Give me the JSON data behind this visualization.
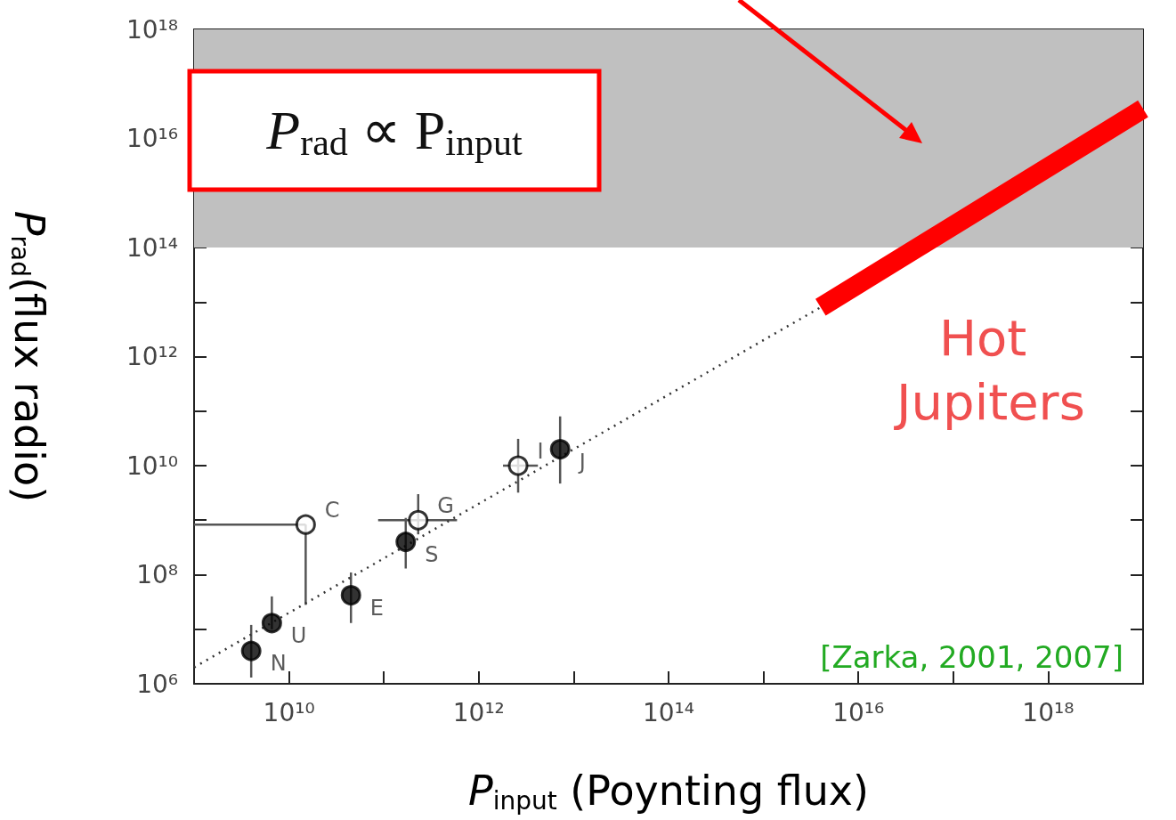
{
  "chart_data": {
    "type": "scatter",
    "xlabel": "P$_{input}$ (Poynting flux)",
    "ylabel": "P$_{rad}$(flux radio)",
    "log": "xy",
    "xlim": [
      1000000000.0,
      1e+19
    ],
    "ylim": [
      1000000.0,
      1e+18
    ],
    "xticks": [
      {
        "value": 1000000000.0,
        "label": null
      },
      {
        "value": 10000000000.0,
        "label": "10¹⁰"
      },
      {
        "value": 100000000000.0,
        "label": null
      },
      {
        "value": 1000000000000.0,
        "label": "10¹²"
      },
      {
        "value": 10000000000000.0,
        "label": null
      },
      {
        "value": 100000000000000.0,
        "label": "10¹⁴"
      },
      {
        "value": 1000000000000000.0,
        "label": null
      },
      {
        "value": 1e+16,
        "label": "10¹⁶"
      },
      {
        "value": 1e+17,
        "label": null
      },
      {
        "value": 1e+18,
        "label": "10¹⁸"
      },
      {
        "value": 1e+19,
        "label": null
      }
    ],
    "yticks": [
      {
        "value": 1000000.0,
        "label": "10⁶"
      },
      {
        "value": 10000000.0,
        "label": null
      },
      {
        "value": 100000000.0,
        "label": "10⁸"
      },
      {
        "value": 1000000000.0,
        "label": null
      },
      {
        "value": 10000000000.0,
        "label": "10¹⁰"
      },
      {
        "value": 100000000000.0,
        "label": null
      },
      {
        "value": 1000000000000.0,
        "label": "10¹²"
      },
      {
        "value": 10000000000000.0,
        "label": null
      },
      {
        "value": 100000000000000.0,
        "label": "10¹⁴"
      },
      {
        "value": 1000000000000000.0,
        "label": null
      },
      {
        "value": 1e+16,
        "label": "10¹⁶"
      },
      {
        "value": 1e+17,
        "label": null
      },
      {
        "value": 1e+18,
        "label": "10¹⁸"
      }
    ],
    "grid": false,
    "marker": "circle",
    "bands": [
      {
        "axis": "y",
        "from": 100000000000000.0,
        "to": 1e+18,
        "color": "#c0c0c0"
      }
    ],
    "series": [
      {
        "color": "#000000",
        "x": [
          4000000000.0,
          6600000000.0,
          45000000000.0,
          170000000000.0,
          7200000000000.0
        ],
        "values": [
          4000000.0,
          13000000.0,
          42000000.0,
          400000000.0,
          20000000000.0
        ],
        "errors": [
          [
            1300000.0,
            12000000.0
          ],
          [
            10000000.0,
            40000000.0
          ],
          [
            13000000.0,
            110000000.0
          ],
          [
            130000000.0,
            1100000000.0
          ],
          [
            4700000000.0,
            80000000000.0
          ]
        ],
        "value_labels": [
          "N",
          "U",
          "E",
          "S",
          "J"
        ]
      },
      {
        "color": "#ffffff",
        "x": [
          15000000000.0,
          230000000000.0,
          2600000000000.0
        ],
        "values": [
          830000000.0,
          1000000000.0,
          10000000000.0
        ],
        "errors": [
          [
            28000000.0,
            830000000.0
          ],
          [
            550000000.0,
            3000000000.0
          ],
          [
            3200000000.0,
            31000000000.0
          ]
        ],
        "xerrors": [
          [
            1000000000.0,
            15000000000.0
          ],
          [
            87000000000.0,
            590000000000.0
          ],
          [
            1800000000000.0,
            4200000000000.0
          ]
        ],
        "value_labels": [
          "C",
          "G",
          "I"
        ]
      },
      {
        "type": "line",
        "color": "#333333",
        "line_style": "dotted",
        "marker": "none",
        "x": [
          1000000000.0,
          4000000000000000.0
        ],
        "values": [
          2000000.0,
          8000000000000.0
        ]
      },
      {
        "type": "line",
        "color": "#ff0000",
        "line_style": "solid",
        "marker": "none",
        "x": [
          4000000000000000.0,
          1e+19
        ],
        "values": [
          8000000000000.0,
          3.5e+16
        ]
      }
    ],
    "annotations": [
      "P$_{rad}$ ∝ P$_{input}$",
      "Hot Jupiters",
      "[Zarka, 2001, 2007]"
    ]
  }
}
